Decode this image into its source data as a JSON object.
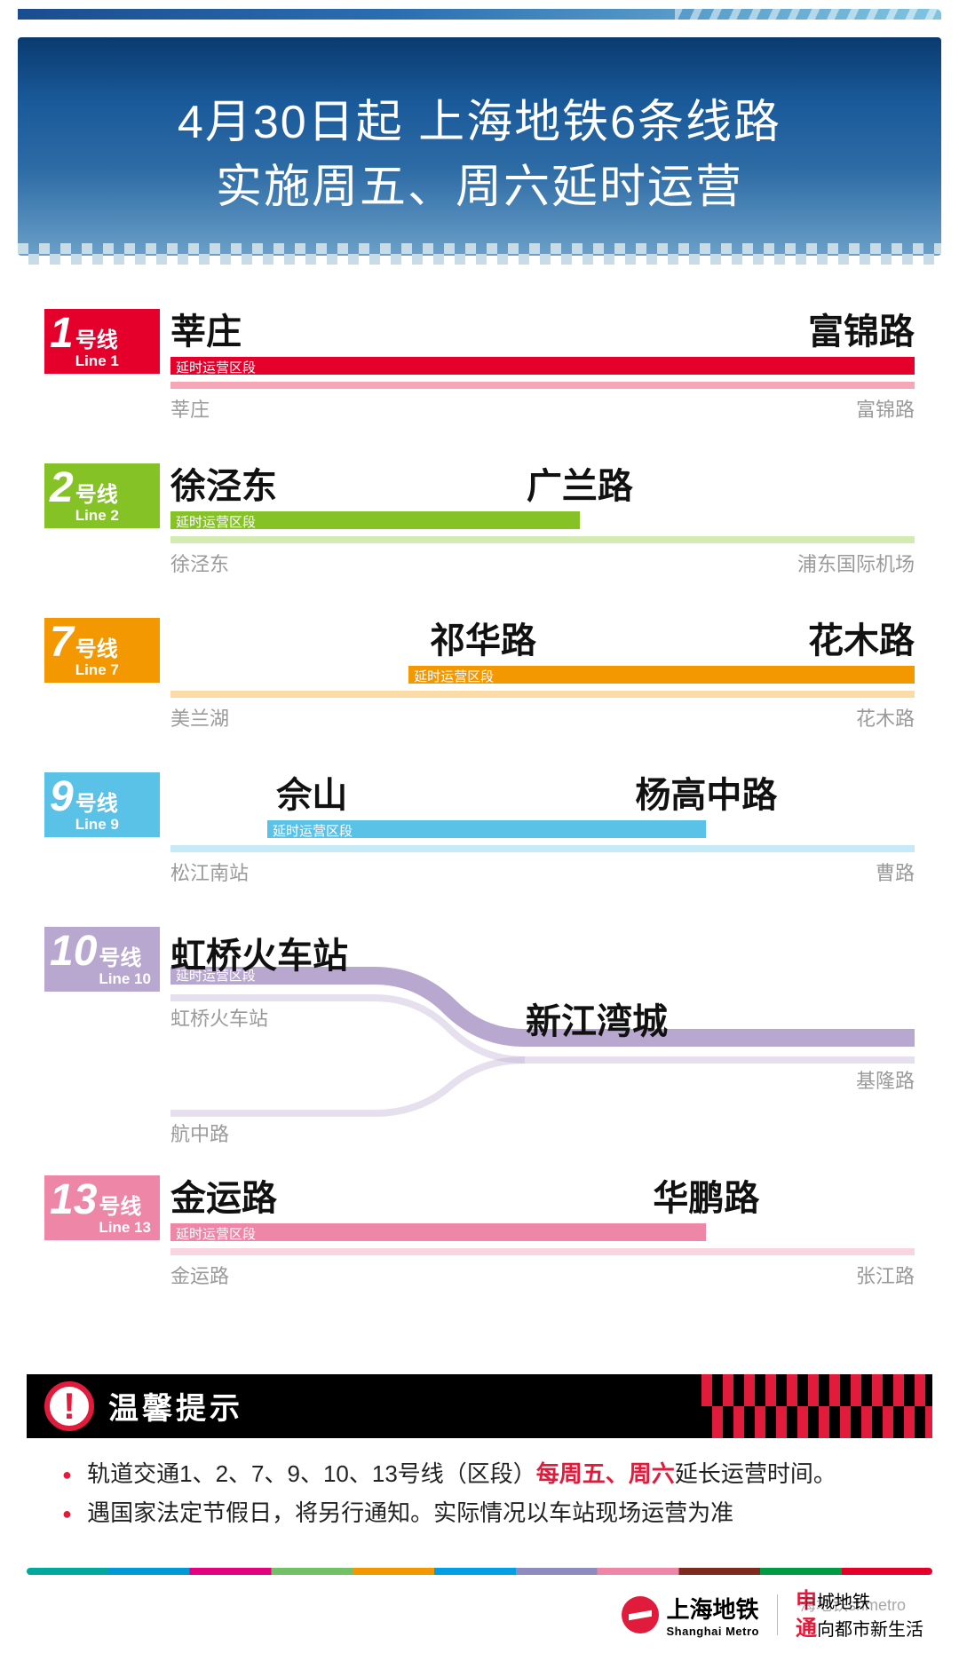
{
  "header": {
    "line1": "4月30日起  上海地铁6条线路",
    "line2": "实施周五、周六延时运营"
  },
  "ext_label": "延时运营区段",
  "lines": [
    {
      "num": "1",
      "cn": "号线",
      "en": "Line 1",
      "color": "#e4002b",
      "light": "#f5b0bd",
      "ext_start_pct": 0,
      "ext_end_pct": 100,
      "stations": [
        {
          "name": "莘庄",
          "pos": 0,
          "align": "left"
        },
        {
          "name": "富锦路",
          "pos": 100,
          "align": "right"
        }
      ],
      "full_start_label": "莘庄",
      "full_end_label": "富锦路"
    },
    {
      "num": "2",
      "cn": "号线",
      "en": "Line 2",
      "color": "#85c226",
      "light": "#d6eab8",
      "ext_start_pct": 0,
      "ext_end_pct": 55,
      "stations": [
        {
          "name": "徐泾东",
          "pos": 0,
          "align": "left"
        },
        {
          "name": "广兰路",
          "pos": 55,
          "align": "center"
        }
      ],
      "full_start_label": "徐泾东",
      "full_end_label": "浦东国际机场"
    },
    {
      "num": "7",
      "cn": "号线",
      "en": "Line 7",
      "color": "#f39800",
      "light": "#fbd9a6",
      "ext_start_pct": 32,
      "ext_end_pct": 100,
      "stations": [
        {
          "name": "祁华路",
          "pos": 42,
          "align": "center"
        },
        {
          "name": "花木路",
          "pos": 100,
          "align": "right"
        }
      ],
      "full_start_label": "美兰湖",
      "full_end_label": "花木路"
    },
    {
      "num": "9",
      "cn": "号线",
      "en": "Line 9",
      "color": "#5bc2e7",
      "light": "#c8e9f6",
      "ext_start_pct": 13,
      "ext_end_pct": 72,
      "stations": [
        {
          "name": "佘山",
          "pos": 19,
          "align": "center"
        },
        {
          "name": "杨高中路",
          "pos": 72,
          "align": "center"
        }
      ],
      "full_start_label": "松江南站",
      "full_end_label": "曹路"
    },
    {
      "num": "13",
      "cn": "号线",
      "en": "Line 13",
      "color": "#ee86a8",
      "light": "#f8cfdd",
      "ext_start_pct": 0,
      "ext_end_pct": 72,
      "stations": [
        {
          "name": "金运路",
          "pos": 0,
          "align": "left"
        },
        {
          "name": "华鹏路",
          "pos": 72,
          "align": "center"
        }
      ],
      "full_start_label": "金运路",
      "full_end_label": "张江路"
    }
  ],
  "line10": {
    "num": "10",
    "cn": "号线",
    "en": "Line 10",
    "color": "#b8a7cf",
    "light": "#e3daed",
    "station_a": "虹桥火车站",
    "station_b": "新江湾城",
    "branch_a_label": "虹桥火车站",
    "branch_b_label": "航中路",
    "end_label": "基隆路"
  },
  "notice": {
    "title": "温馨提示",
    "row1_a": "轨道交通1、2、7、9、10、13号线（区段）",
    "row1_hl": "每周五、周六",
    "row1_b": "延长运营时间。",
    "row2": "遇国家法定节假日，将另行通知。实际情况以车站现场运营为准"
  },
  "footer": {
    "brand_cn": "上海地铁",
    "brand_en": "Shanghai Metro",
    "slogan1_a": "申",
    "slogan1_b": "城地铁",
    "slogan2_a": "通",
    "slogan2_b": "向都市新生活",
    "watermark": "海地铁shmetro"
  }
}
